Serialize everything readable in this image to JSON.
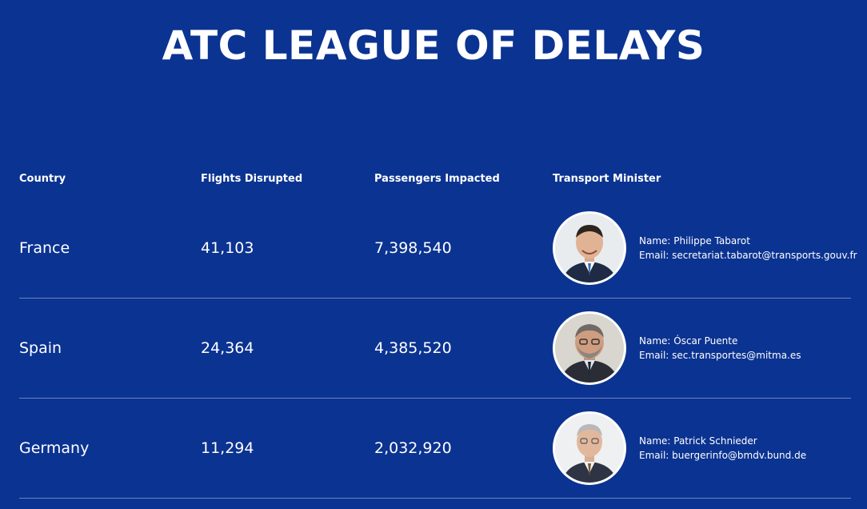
{
  "title": "ATC LEAGUE OF DELAYS",
  "headers": {
    "country": "Country",
    "flights": "Flights Disrupted",
    "passengers": "Passengers Impacted",
    "minister": "Transport Minister"
  },
  "rows": [
    {
      "country": "France",
      "flights": "41,103",
      "passengers": "7,398,540",
      "name": "Name: Philippe Tabarot",
      "email": "Email: secretariat.tabarot@transports.gouv.fr"
    },
    {
      "country": "Spain",
      "flights": "24,364",
      "passengers": "4,385,520",
      "name": "Name: Óscar Puente",
      "email": "Email: sec.transportes@mitma.es"
    },
    {
      "country": "Germany",
      "flights": "11,294",
      "passengers": "2,032,920",
      "name": "Name: Patrick Schnieder",
      "email": "Email: buergerinfo@bmdv.bund.de"
    }
  ],
  "colors": {
    "background": "#0b3391",
    "text": "#ffffff",
    "divider": "#6b83c0"
  }
}
